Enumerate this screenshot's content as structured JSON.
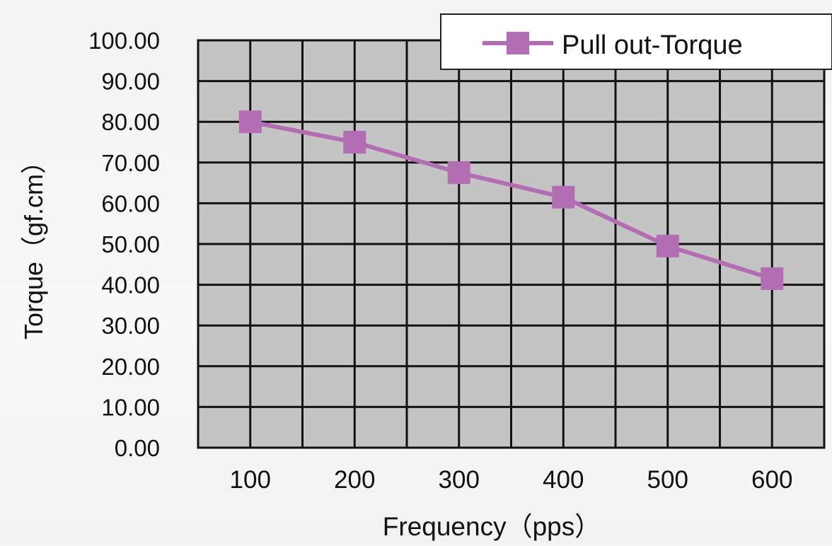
{
  "chart_data": {
    "type": "line",
    "xlabel": "Frequency（pps）",
    "ylabel": "Torque（gf.cm）",
    "categories": [
      "100",
      "200",
      "300",
      "400",
      "500",
      "600"
    ],
    "series": [
      {
        "name": "Pull out-Torque",
        "values": [
          80.0,
          75.0,
          67.5,
          61.5,
          49.5,
          41.5
        ]
      }
    ],
    "ylim": [
      0,
      100
    ],
    "yticks": [
      "0.00",
      "10.00",
      "20.00",
      "30.00",
      "40.00",
      "50.00",
      "60.00",
      "70.00",
      "80.00",
      "90.00",
      "100.00"
    ],
    "grid": true,
    "legend": "top-right",
    "colors": {
      "series": "#b36db3",
      "plot_background": "#c4c4c4",
      "grid": "#111111"
    }
  }
}
